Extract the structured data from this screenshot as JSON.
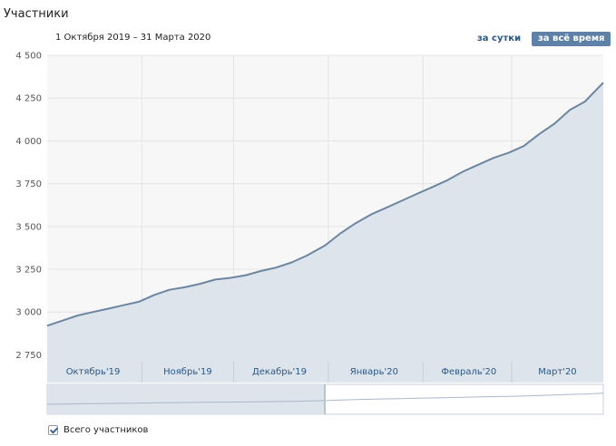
{
  "page": {
    "title": "Участники"
  },
  "header": {
    "date_range": "1 Октября 2019 – 31 Марта 2020",
    "period_day": "за сутки",
    "period_all": "за всё время"
  },
  "legend": {
    "label": "Всего участников"
  },
  "colors": {
    "line": "#6d86a0",
    "fill": "#dde4ec",
    "accent_button": "#5e81a8"
  },
  "chart_data": {
    "type": "area",
    "x_start": "2019-10-01",
    "x_end": "2020-03-31",
    "ylim": [
      2710,
      4500
    ],
    "y_ticks": [
      2750,
      3000,
      3250,
      3500,
      3750,
      4000,
      4250,
      4500
    ],
    "y_tick_labels": [
      "2 750",
      "3 000",
      "3 250",
      "3 500",
      "3 750",
      "4 000",
      "4 250",
      "4 500"
    ],
    "x_ticks": [
      {
        "label": "Октябрь'19",
        "date": "2019-10-16"
      },
      {
        "label": "Ноябрь'19",
        "date": "2019-11-16"
      },
      {
        "label": "Декабрь'19",
        "date": "2019-12-16"
      },
      {
        "label": "Январь'20",
        "date": "2020-01-16"
      },
      {
        "label": "Февраль'20",
        "date": "2020-02-16"
      },
      {
        "label": "Март'20",
        "date": "2020-03-16"
      }
    ],
    "grid": true,
    "series": [
      {
        "x": [
          "2019-10-01",
          "2019-10-06",
          "2019-10-11",
          "2019-10-16",
          "2019-10-21",
          "2019-10-26",
          "2019-10-31",
          "2019-11-05",
          "2019-11-10",
          "2019-11-15",
          "2019-11-20",
          "2019-11-25",
          "2019-11-30",
          "2019-12-05",
          "2019-12-10",
          "2019-12-15",
          "2019-12-20",
          "2019-12-25",
          "2019-12-31",
          "2020-01-05",
          "2020-01-10",
          "2020-01-15",
          "2020-01-20",
          "2020-01-25",
          "2020-01-30",
          "2020-02-04",
          "2020-02-09",
          "2020-02-14",
          "2020-02-19",
          "2020-02-24",
          "2020-02-29",
          "2020-03-05",
          "2020-03-10",
          "2020-03-15",
          "2020-03-20",
          "2020-03-25",
          "2020-03-31"
        ],
        "y": [
          2920,
          2950,
          2980,
          3000,
          3020,
          3040,
          3060,
          3100,
          3130,
          3145,
          3165,
          3190,
          3200,
          3215,
          3240,
          3260,
          3290,
          3330,
          3390,
          3460,
          3520,
          3570,
          3610,
          3650,
          3690,
          3730,
          3770,
          3820,
          3860,
          3900,
          3930,
          3970,
          4040,
          4100,
          4180,
          4230,
          4340
        ]
      }
    ]
  }
}
